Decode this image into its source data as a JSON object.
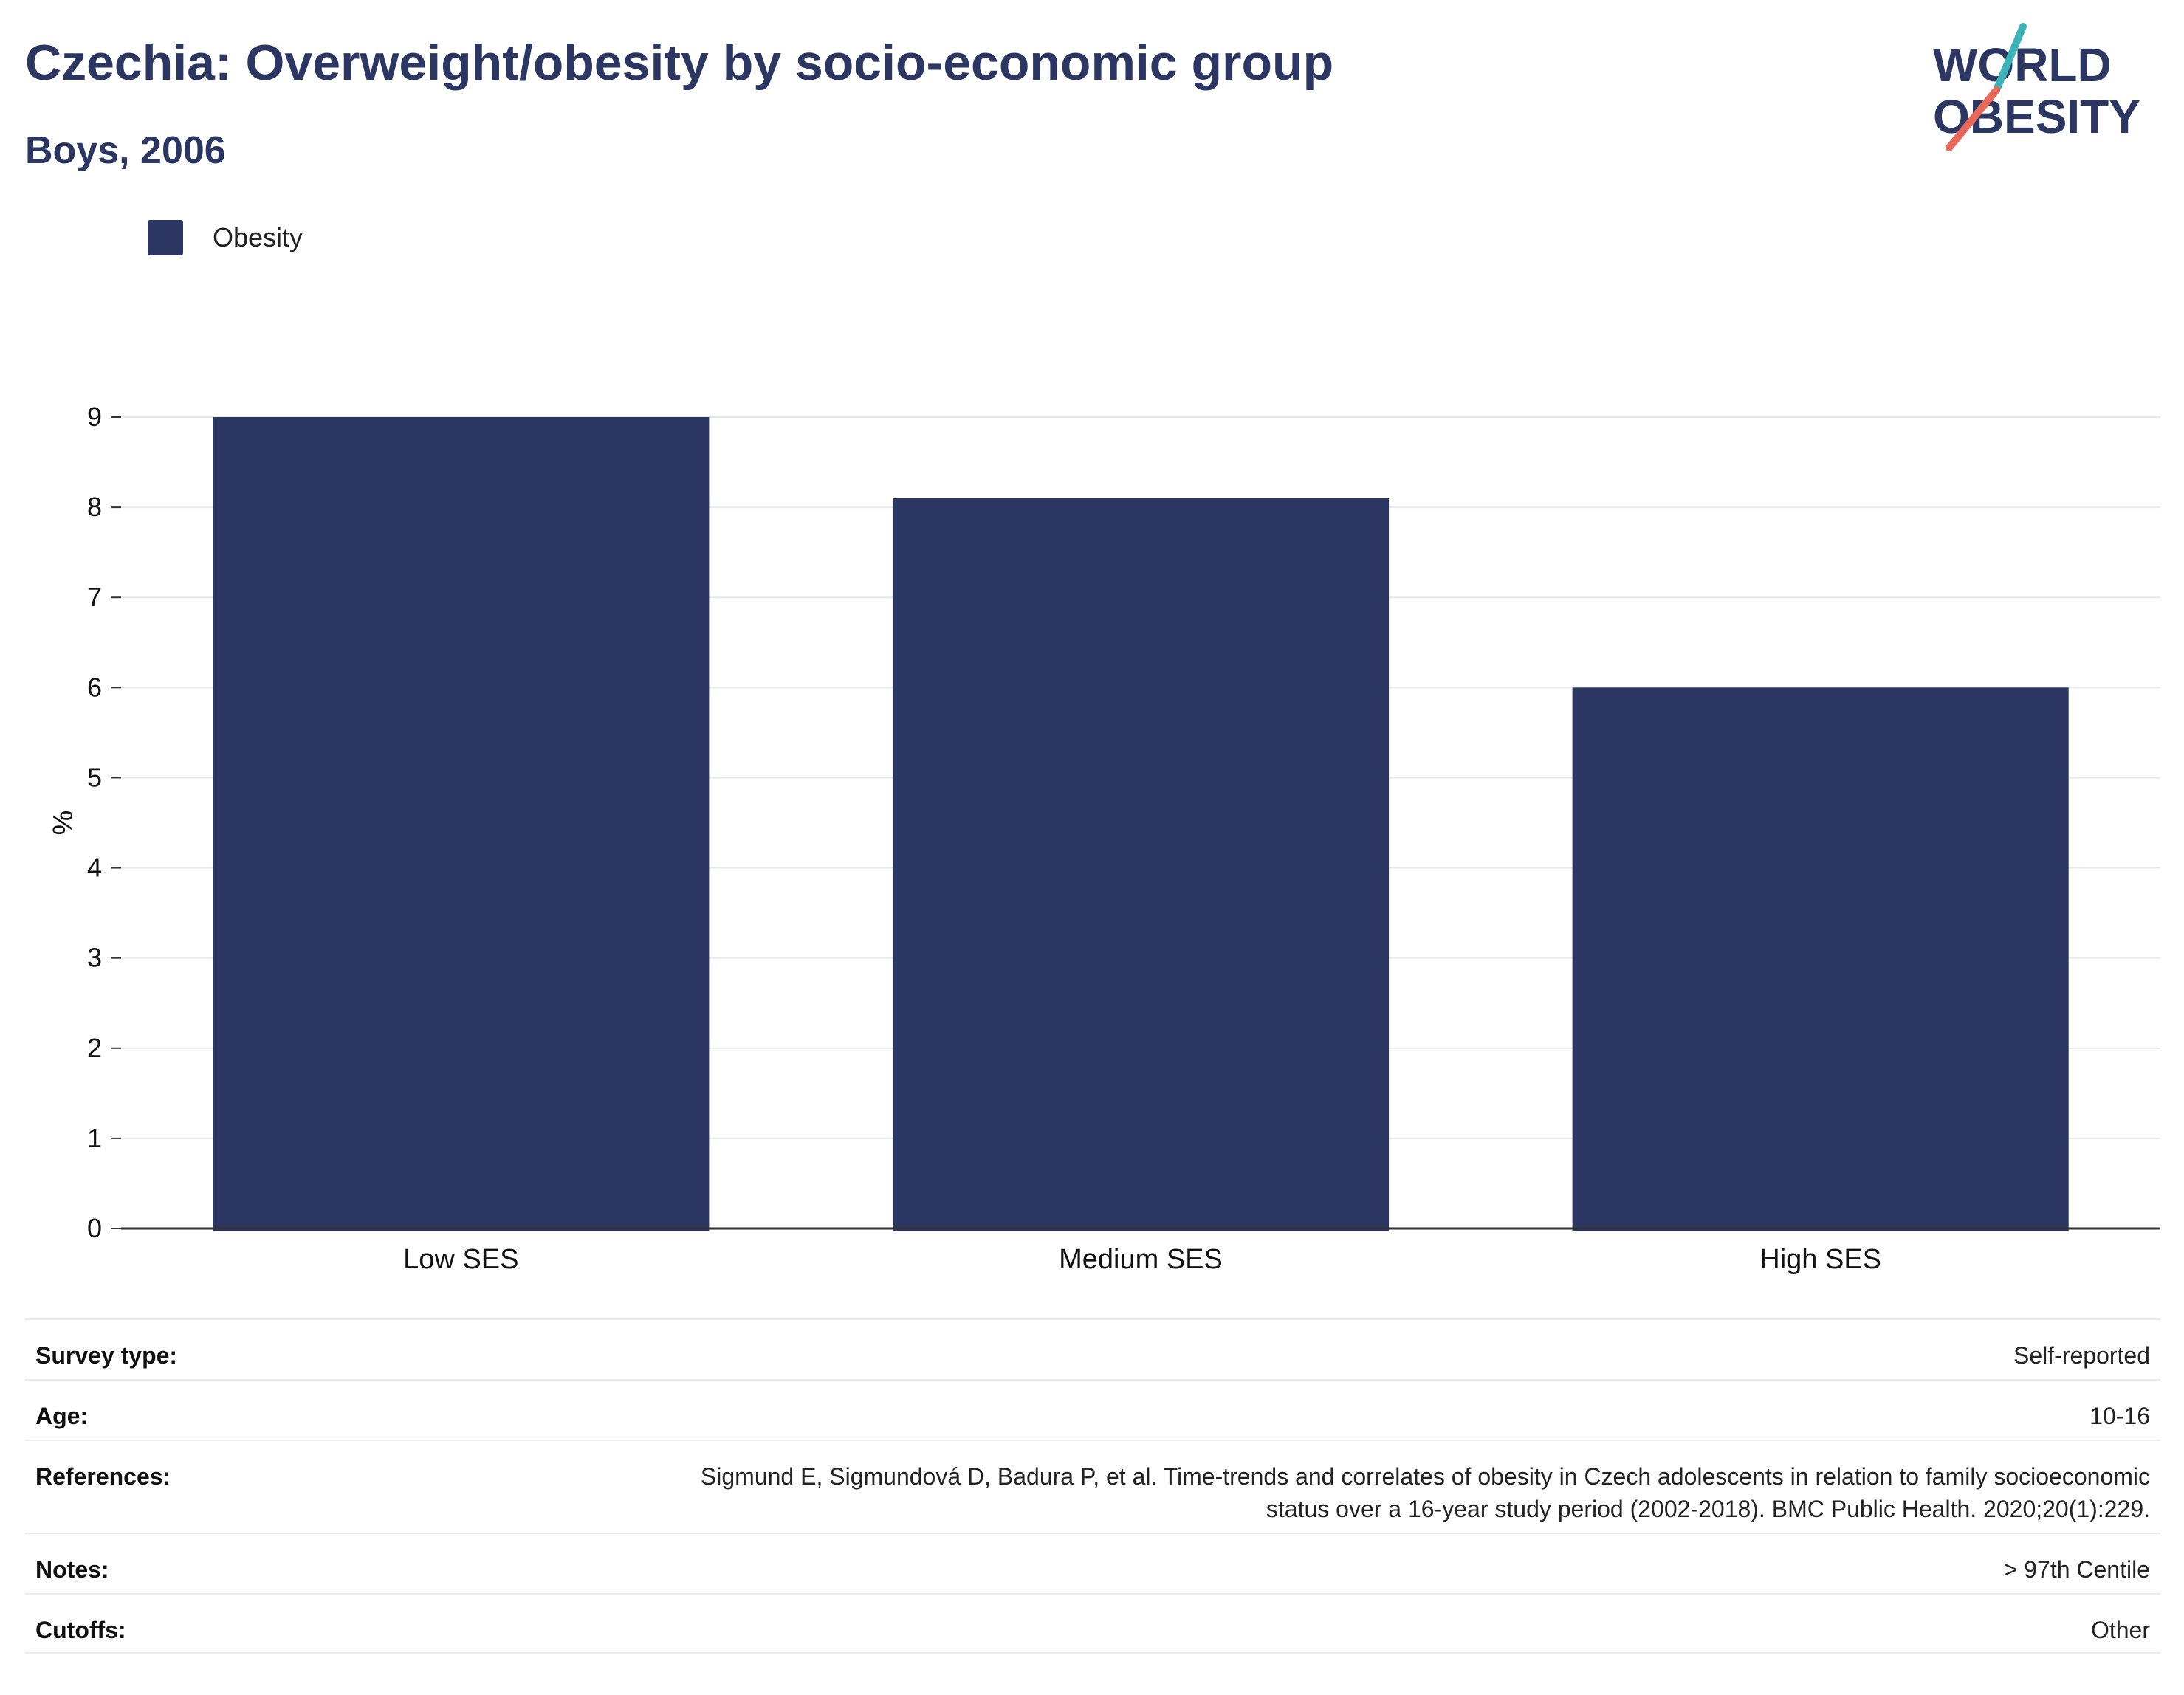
{
  "header": {
    "title": "Czechia: Overweight/obesity by socio-economic group",
    "subtitle": "Boys, 2006"
  },
  "logo": {
    "line1": "WORLD",
    "line2": "OBESITY",
    "accent_teal": "#3bb3b8",
    "accent_coral": "#e8695a"
  },
  "colors": {
    "bar": "#2b3663",
    "grid": "#e6e9ee",
    "axis": "#333333",
    "text": "#2b3663"
  },
  "chart_data": {
    "type": "bar",
    "title": "Czechia: Overweight/obesity by socio-economic group",
    "subtitle": "Boys, 2006",
    "categories": [
      "Low SES",
      "Medium SES",
      "High SES"
    ],
    "series": [
      {
        "name": "Obesity",
        "values": [
          9.0,
          8.1,
          6.0
        ],
        "color": "#2b3663"
      }
    ],
    "xlabel": "",
    "ylabel": "%",
    "ylim": [
      0,
      9
    ],
    "yticks": [
      0,
      1,
      2,
      3,
      4,
      5,
      6,
      7,
      8,
      9
    ],
    "grid": true,
    "legend_position": "top-left"
  },
  "meta": {
    "survey_type": {
      "label": "Survey type:",
      "value": "Self-reported"
    },
    "age": {
      "label": "Age:",
      "value": "10-16"
    },
    "references": {
      "label": "References:",
      "value": "Sigmund E, Sigmundová D, Badura P, et al. Time-trends and correlates of obesity in Czech adolescents in relation to family socioeconomic status over a 16-year study period (2002-2018). BMC Public Health. 2020;20(1):229."
    },
    "notes": {
      "label": "Notes:",
      "value": "> 97th Centile"
    },
    "cutoffs": {
      "label": "Cutoffs:",
      "value": "Other"
    }
  }
}
